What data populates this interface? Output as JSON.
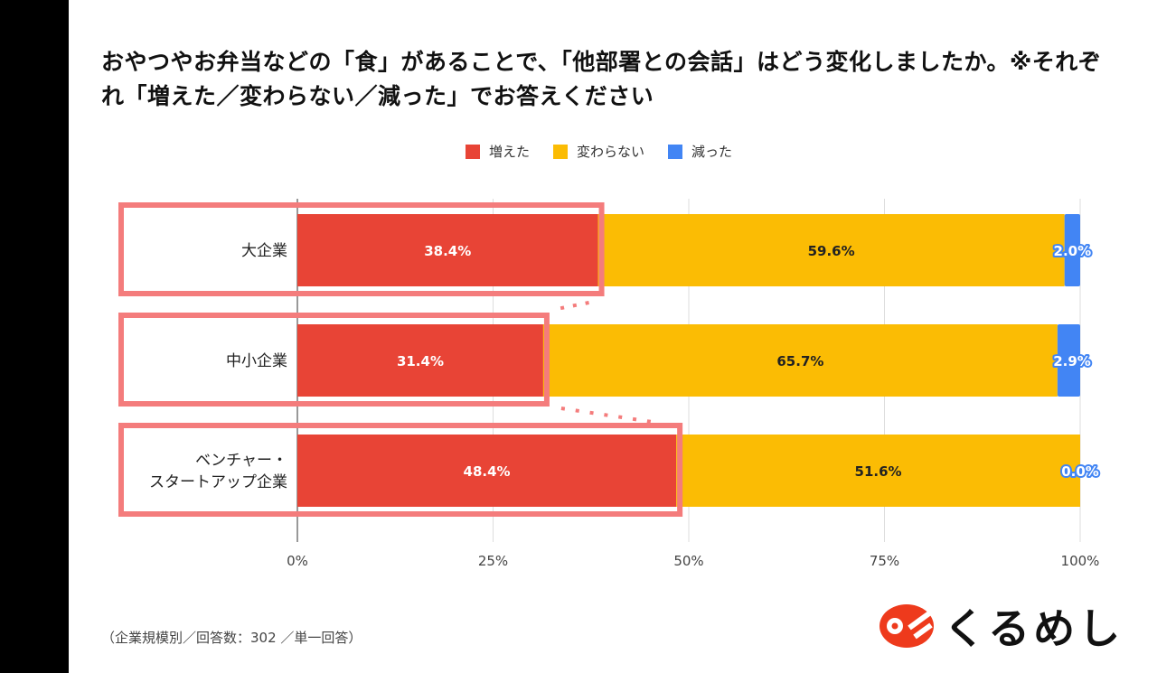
{
  "title": "おやつやお弁当などの「食」があることで、「他部署との会話」はどう変化しましたか。※それぞれ「増えた／変わらない／減った」でお答えください",
  "note": "（企業規模別／回答数：302 ／単一回答）",
  "logo_text": "くるめし",
  "chart_data": {
    "type": "bar",
    "stacked": true,
    "orientation": "horizontal",
    "title": "おやつやお弁当などの「食」があることで、「他部署との会話」はどう変化しましたか。※それぞれ「増えた／変わらない／減った」でお答えください",
    "categories": [
      "大企業",
      "中小企業",
      "ベンチャー・\nスタートアップ企業"
    ],
    "series": [
      {
        "name": "増えた",
        "color": "#e84436",
        "values": [
          38.4,
          31.4,
          48.4
        ]
      },
      {
        "name": "変わらない",
        "color": "#fbbc04",
        "values": [
          59.6,
          65.7,
          51.6
        ]
      },
      {
        "name": "減った",
        "color": "#4285f4",
        "values": [
          2.0,
          2.9,
          0.0
        ]
      }
    ],
    "xlim": [
      0,
      100
    ],
    "xticks": [
      "0%",
      "25%",
      "50%",
      "75%",
      "100%"
    ],
    "legend_position": "top-center",
    "highlighted_series": "増えた",
    "grid": true
  }
}
